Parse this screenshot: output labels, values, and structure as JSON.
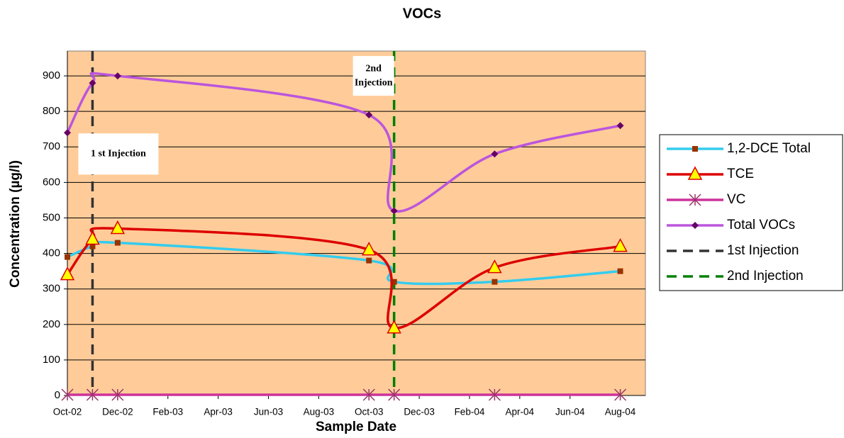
{
  "chart_data": {
    "type": "line",
    "title": "VOCs",
    "x_label": "Sample Date",
    "y_label": "Concentration (µg/l)",
    "x": [
      "2002-10",
      "2002-11",
      "2002-12",
      "2003-10",
      "2003-11",
      "2004-03",
      "2004-08"
    ],
    "series": [
      {
        "name": "1,2-DCE Total",
        "color": "#33ccee",
        "marker": "square",
        "marker_color": "#993300",
        "values": [
          390,
          420,
          430,
          380,
          320,
          320,
          350
        ]
      },
      {
        "name": "TCE",
        "color": "#dd0000",
        "marker": "triangle",
        "marker_color": "#ffff00",
        "values": [
          340,
          440,
          470,
          410,
          190,
          360,
          420
        ]
      },
      {
        "name": "VC",
        "color": "#cc3399",
        "marker": "star",
        "marker_color": "#993366",
        "values": [
          2,
          2,
          2,
          2,
          2,
          2,
          2
        ]
      },
      {
        "name": "Total VOCs",
        "color": "#bb55dd",
        "marker": "diamond",
        "marker_color": "#660066",
        "values": [
          740,
          880,
          900,
          790,
          520,
          680,
          760
        ]
      }
    ],
    "vlines": [
      {
        "name": "1st Injection",
        "color": "#333333",
        "x": "2002-11"
      },
      {
        "name": "2nd Injection",
        "color": "#008000",
        "x": "2003-11"
      }
    ],
    "annotations": [
      {
        "lines": [
          "1 st Injection"
        ],
        "x": "2002-11",
        "y": 680
      },
      {
        "lines": [
          "2nd",
          "Injection"
        ],
        "x": "2003-11",
        "y": 900
      }
    ],
    "xlim": [
      "2002-10",
      "2004-09"
    ],
    "xticks": [
      {
        "value": "2002-10",
        "label": "Oct-02"
      },
      {
        "value": "2002-12",
        "label": "Dec-02"
      },
      {
        "value": "2003-02",
        "label": "Feb-03"
      },
      {
        "value": "2003-04",
        "label": "Apr-03"
      },
      {
        "value": "2003-06",
        "label": "Jun-03"
      },
      {
        "value": "2003-08",
        "label": "Aug-03"
      },
      {
        "value": "2003-10",
        "label": "Oct-03"
      },
      {
        "value": "2003-12",
        "label": "Dec-03"
      },
      {
        "value": "2004-02",
        "label": "Feb-04"
      },
      {
        "value": "2004-04",
        "label": "Apr-04"
      },
      {
        "value": "2004-06",
        "label": "Jun-04"
      },
      {
        "value": "2004-08",
        "label": "Aug-04"
      }
    ],
    "ylim": [
      0,
      970
    ],
    "yticks": [
      0,
      100,
      200,
      300,
      400,
      500,
      600,
      700,
      800,
      900
    ],
    "grid": true,
    "background": "#ffcc99",
    "legend": "right"
  }
}
